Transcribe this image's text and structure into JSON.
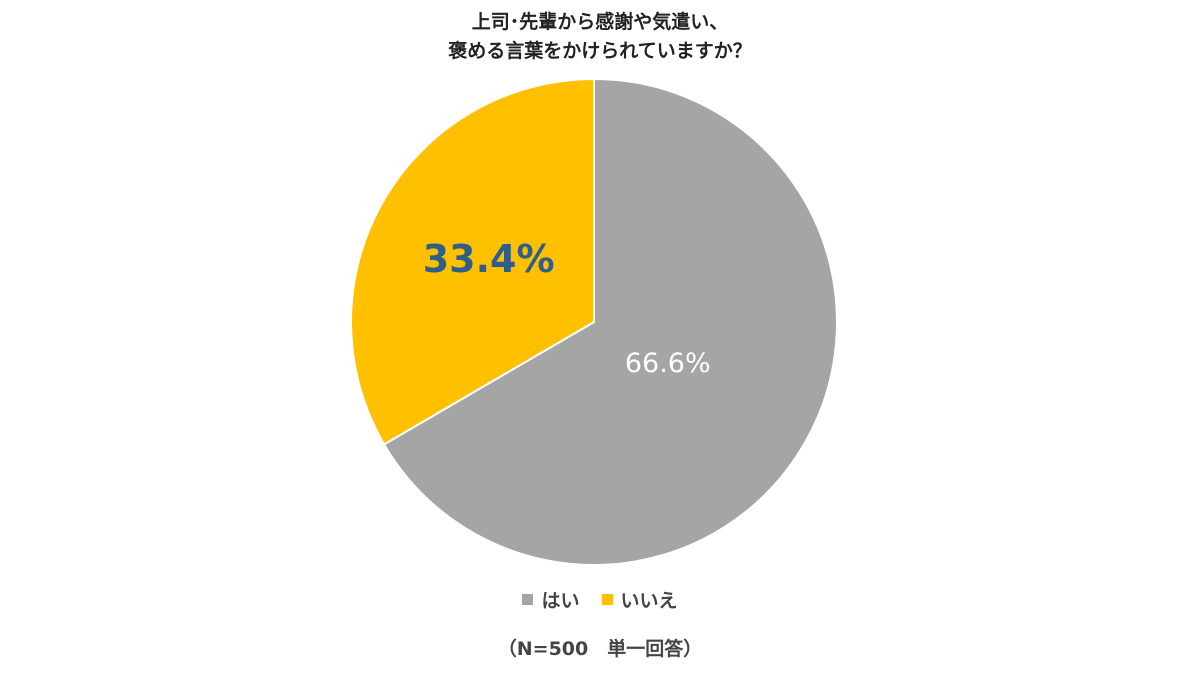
{
  "chart_data": {
    "type": "pie",
    "title": "上司･先輩から感謝や気遣い、\n褒める言葉をかけられていますか？",
    "categories": [
      "はい",
      "いいえ"
    ],
    "values": [
      66.6,
      33.4
    ],
    "value_labels": [
      "66.6%",
      "33.4%"
    ],
    "colors": [
      "#a5a5a5",
      "#ffc000"
    ],
    "note": "（N=500　単一回答）"
  }
}
